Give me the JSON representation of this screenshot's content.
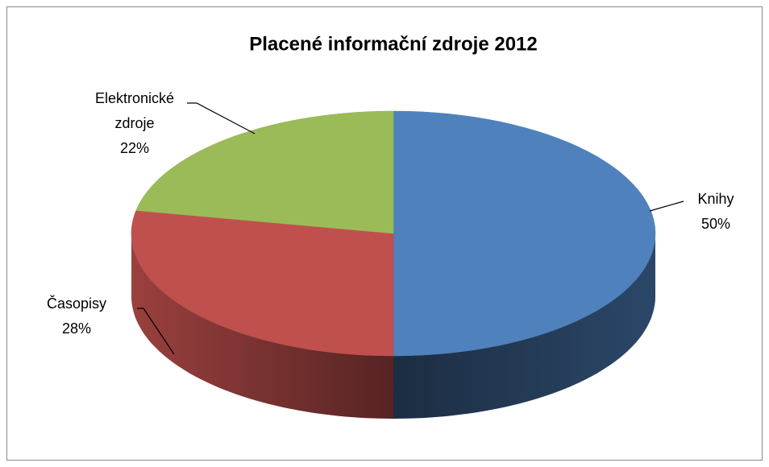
{
  "chart_data": {
    "type": "pie3d",
    "title": "Placené informační zdroje  2012",
    "categories": [
      "Knihy",
      "Časopisy",
      "Elektronické zdroje"
    ],
    "values": [
      50,
      28,
      22
    ],
    "value_labels": [
      "50%",
      "28%",
      "22%"
    ],
    "colors": [
      "#4f81bd",
      "#c0504d",
      "#9bbb59"
    ]
  }
}
